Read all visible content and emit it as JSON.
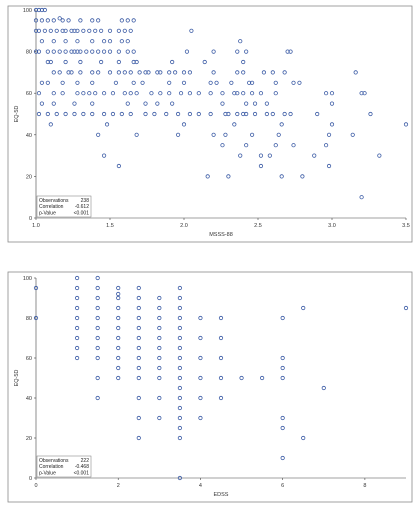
{
  "chart_data": [
    {
      "type": "scatter",
      "xlabel": "MSSS-88",
      "ylabel": "EQ-5D",
      "xlim": [
        1.0,
        3.5
      ],
      "ylim": [
        0,
        100
      ],
      "xticks": [
        "1.0",
        "1.5",
        "2.0",
        "2.5",
        "3.0",
        "3.5"
      ],
      "xtick_values": [
        1.0,
        1.5,
        2.0,
        2.5,
        3.0,
        3.5
      ],
      "yticks": [
        "0",
        "20",
        "40",
        "60",
        "80",
        "100"
      ],
      "ytick_values": [
        0,
        20,
        40,
        60,
        80,
        100
      ],
      "stats": [
        {
          "label": "Observations",
          "value": "238"
        },
        {
          "label": "Correlation",
          "value": "-0.612"
        },
        {
          "label": "p-Value",
          "value": "<0.001"
        }
      ],
      "points": [
        [
          1.0,
          100
        ],
        [
          1.02,
          100
        ],
        [
          1.04,
          100
        ],
        [
          1.06,
          100
        ],
        [
          1.0,
          95
        ],
        [
          1.04,
          95
        ],
        [
          1.08,
          95
        ],
        [
          1.12,
          95
        ],
        [
          1.16,
          96
        ],
        [
          1.18,
          95
        ],
        [
          1.22,
          95
        ],
        [
          1.3,
          95
        ],
        [
          1.38,
          95
        ],
        [
          1.42,
          95
        ],
        [
          1.58,
          95
        ],
        [
          1.62,
          95
        ],
        [
          1.66,
          95
        ],
        [
          1.0,
          90
        ],
        [
          1.02,
          90
        ],
        [
          1.06,
          90
        ],
        [
          1.1,
          90
        ],
        [
          1.14,
          90
        ],
        [
          1.18,
          90
        ],
        [
          1.2,
          90
        ],
        [
          1.24,
          90
        ],
        [
          1.26,
          90
        ],
        [
          1.28,
          90
        ],
        [
          1.32,
          90
        ],
        [
          1.36,
          90
        ],
        [
          1.4,
          90
        ],
        [
          1.44,
          90
        ],
        [
          1.5,
          90
        ],
        [
          1.56,
          90
        ],
        [
          1.6,
          90
        ],
        [
          1.64,
          90
        ],
        [
          2.05,
          90
        ],
        [
          1.04,
          85
        ],
        [
          1.12,
          85
        ],
        [
          1.2,
          85
        ],
        [
          1.28,
          85
        ],
        [
          1.38,
          85
        ],
        [
          1.46,
          85
        ],
        [
          1.5,
          85
        ],
        [
          1.58,
          85
        ],
        [
          1.62,
          85
        ],
        [
          2.38,
          85
        ],
        [
          1.0,
          80
        ],
        [
          1.02,
          80
        ],
        [
          1.08,
          80
        ],
        [
          1.12,
          80
        ],
        [
          1.16,
          80
        ],
        [
          1.2,
          80
        ],
        [
          1.24,
          80
        ],
        [
          1.26,
          80
        ],
        [
          1.28,
          80
        ],
        [
          1.3,
          80
        ],
        [
          1.34,
          80
        ],
        [
          1.38,
          80
        ],
        [
          1.42,
          80
        ],
        [
          1.46,
          80
        ],
        [
          1.5,
          80
        ],
        [
          1.56,
          80
        ],
        [
          1.62,
          80
        ],
        [
          1.66,
          80
        ],
        [
          2.02,
          80
        ],
        [
          2.2,
          80
        ],
        [
          2.36,
          80
        ],
        [
          2.42,
          80
        ],
        [
          2.7,
          80
        ],
        [
          2.72,
          80
        ],
        [
          1.08,
          75
        ],
        [
          1.1,
          75
        ],
        [
          1.2,
          75
        ],
        [
          1.3,
          75
        ],
        [
          1.44,
          75
        ],
        [
          1.56,
          75
        ],
        [
          1.66,
          75
        ],
        [
          1.68,
          75
        ],
        [
          1.92,
          75
        ],
        [
          2.14,
          75
        ],
        [
          2.4,
          75
        ],
        [
          1.12,
          70
        ],
        [
          1.16,
          70
        ],
        [
          1.22,
          70
        ],
        [
          1.24,
          70
        ],
        [
          1.3,
          70
        ],
        [
          1.38,
          70
        ],
        [
          1.42,
          70
        ],
        [
          1.5,
          70
        ],
        [
          1.56,
          70
        ],
        [
          1.6,
          70
        ],
        [
          1.64,
          70
        ],
        [
          1.7,
          70
        ],
        [
          1.74,
          70
        ],
        [
          1.76,
          70
        ],
        [
          1.82,
          70
        ],
        [
          1.84,
          70
        ],
        [
          1.9,
          70
        ],
        [
          1.94,
          70
        ],
        [
          2.0,
          70
        ],
        [
          2.04,
          70
        ],
        [
          2.2,
          70
        ],
        [
          2.36,
          70
        ],
        [
          2.4,
          70
        ],
        [
          2.54,
          70
        ],
        [
          2.6,
          70
        ],
        [
          2.68,
          70
        ],
        [
          3.16,
          70
        ],
        [
          1.04,
          65
        ],
        [
          1.08,
          65
        ],
        [
          1.18,
          65
        ],
        [
          1.28,
          65
        ],
        [
          1.38,
          65
        ],
        [
          1.54,
          65
        ],
        [
          1.66,
          65
        ],
        [
          1.72,
          65
        ],
        [
          1.9,
          65
        ],
        [
          2.0,
          65
        ],
        [
          2.18,
          65
        ],
        [
          2.22,
          65
        ],
        [
          2.32,
          65
        ],
        [
          2.44,
          65
        ],
        [
          2.46,
          65
        ],
        [
          2.62,
          65
        ],
        [
          2.74,
          65
        ],
        [
          2.78,
          65
        ],
        [
          1.02,
          60
        ],
        [
          1.12,
          60
        ],
        [
          1.18,
          60
        ],
        [
          1.28,
          60
        ],
        [
          1.32,
          60
        ],
        [
          1.36,
          60
        ],
        [
          1.4,
          60
        ],
        [
          1.46,
          60
        ],
        [
          1.52,
          60
        ],
        [
          1.6,
          60
        ],
        [
          1.64,
          60
        ],
        [
          1.68,
          60
        ],
        [
          1.78,
          60
        ],
        [
          1.84,
          60
        ],
        [
          1.9,
          60
        ],
        [
          1.98,
          60
        ],
        [
          2.04,
          60
        ],
        [
          2.1,
          60
        ],
        [
          2.18,
          60
        ],
        [
          2.26,
          60
        ],
        [
          2.34,
          60
        ],
        [
          2.36,
          60
        ],
        [
          2.4,
          60
        ],
        [
          2.46,
          60
        ],
        [
          2.52,
          60
        ],
        [
          2.62,
          60
        ],
        [
          2.96,
          60
        ],
        [
          3.0,
          60
        ],
        [
          3.2,
          60
        ],
        [
          3.22,
          60
        ],
        [
          1.04,
          55
        ],
        [
          1.12,
          55
        ],
        [
          1.26,
          55
        ],
        [
          1.38,
          55
        ],
        [
          1.62,
          55
        ],
        [
          1.74,
          55
        ],
        [
          1.82,
          55
        ],
        [
          1.92,
          55
        ],
        [
          2.26,
          55
        ],
        [
          2.42,
          55
        ],
        [
          2.48,
          55
        ],
        [
          2.56,
          55
        ],
        [
          3.0,
          55
        ],
        [
          1.02,
          50
        ],
        [
          1.08,
          50
        ],
        [
          1.14,
          50
        ],
        [
          1.2,
          50
        ],
        [
          1.26,
          50
        ],
        [
          1.32,
          50
        ],
        [
          1.38,
          50
        ],
        [
          1.46,
          50
        ],
        [
          1.52,
          50
        ],
        [
          1.58,
          50
        ],
        [
          1.64,
          50
        ],
        [
          1.74,
          50
        ],
        [
          1.8,
          50
        ],
        [
          1.88,
          50
        ],
        [
          1.96,
          50
        ],
        [
          2.04,
          50
        ],
        [
          2.1,
          50
        ],
        [
          2.18,
          50
        ],
        [
          2.28,
          50
        ],
        [
          2.3,
          50
        ],
        [
          2.36,
          50
        ],
        [
          2.4,
          50
        ],
        [
          2.42,
          50
        ],
        [
          2.48,
          50
        ],
        [
          2.56,
          50
        ],
        [
          2.6,
          50
        ],
        [
          2.68,
          50
        ],
        [
          2.72,
          50
        ],
        [
          2.9,
          50
        ],
        [
          3.26,
          50
        ],
        [
          1.1,
          45
        ],
        [
          1.48,
          45
        ],
        [
          2.0,
          45
        ],
        [
          2.34,
          45
        ],
        [
          2.66,
          45
        ],
        [
          3.0,
          45
        ],
        [
          3.5,
          45
        ],
        [
          1.42,
          40
        ],
        [
          1.68,
          40
        ],
        [
          1.96,
          40
        ],
        [
          2.2,
          40
        ],
        [
          2.28,
          40
        ],
        [
          2.46,
          40
        ],
        [
          2.64,
          40
        ],
        [
          2.98,
          40
        ],
        [
          3.14,
          40
        ],
        [
          2.26,
          35
        ],
        [
          2.42,
          35
        ],
        [
          2.62,
          35
        ],
        [
          2.74,
          35
        ],
        [
          2.96,
          35
        ],
        [
          1.46,
          30
        ],
        [
          2.38,
          30
        ],
        [
          2.52,
          30
        ],
        [
          2.58,
          30
        ],
        [
          2.88,
          30
        ],
        [
          3.32,
          30
        ],
        [
          1.56,
          25
        ],
        [
          2.52,
          25
        ],
        [
          2.98,
          25
        ],
        [
          2.16,
          20
        ],
        [
          2.3,
          20
        ],
        [
          2.66,
          20
        ],
        [
          2.8,
          20
        ],
        [
          3.2,
          10
        ]
      ]
    },
    {
      "type": "scatter",
      "xlabel": "EDSS",
      "ylabel": "EQ-5D",
      "xlim": [
        0,
        9
      ],
      "ylim": [
        0,
        100
      ],
      "xticks": [
        "0",
        "2",
        "4",
        "6",
        "8"
      ],
      "xtick_values": [
        0,
        2,
        4,
        6,
        8
      ],
      "yticks": [
        "0",
        "20",
        "40",
        "60",
        "80",
        "100"
      ],
      "ytick_values": [
        0,
        20,
        40,
        60,
        80,
        100
      ],
      "stats": [
        {
          "label": "Observations",
          "value": "222"
        },
        {
          "label": "Correlation",
          "value": "-0.468"
        },
        {
          "label": "p-Value",
          "value": "<0.001"
        }
      ],
      "points": [
        [
          0,
          95
        ],
        [
          0,
          80
        ],
        [
          1,
          100
        ],
        [
          1,
          95
        ],
        [
          1,
          90
        ],
        [
          1,
          85
        ],
        [
          1,
          80
        ],
        [
          1,
          75
        ],
        [
          1,
          70
        ],
        [
          1,
          65
        ],
        [
          1,
          60
        ],
        [
          1.5,
          100
        ],
        [
          1.5,
          95
        ],
        [
          1.5,
          90
        ],
        [
          1.5,
          85
        ],
        [
          1.5,
          80
        ],
        [
          1.5,
          75
        ],
        [
          1.5,
          70
        ],
        [
          1.5,
          65
        ],
        [
          1.5,
          60
        ],
        [
          1.5,
          50
        ],
        [
          1.5,
          40
        ],
        [
          2,
          95
        ],
        [
          2,
          92
        ],
        [
          2,
          90
        ],
        [
          2,
          85
        ],
        [
          2,
          80
        ],
        [
          2,
          75
        ],
        [
          2,
          70
        ],
        [
          2,
          65
        ],
        [
          2,
          60
        ],
        [
          2,
          55
        ],
        [
          2,
          50
        ],
        [
          2.5,
          95
        ],
        [
          2.5,
          90
        ],
        [
          2.5,
          85
        ],
        [
          2.5,
          80
        ],
        [
          2.5,
          75
        ],
        [
          2.5,
          70
        ],
        [
          2.5,
          65
        ],
        [
          2.5,
          60
        ],
        [
          2.5,
          55
        ],
        [
          2.5,
          50
        ],
        [
          2.5,
          40
        ],
        [
          2.5,
          30
        ],
        [
          2.5,
          20
        ],
        [
          3,
          90
        ],
        [
          3,
          85
        ],
        [
          3,
          80
        ],
        [
          3,
          75
        ],
        [
          3,
          70
        ],
        [
          3,
          65
        ],
        [
          3,
          60
        ],
        [
          3,
          55
        ],
        [
          3,
          50
        ],
        [
          3,
          40
        ],
        [
          3,
          30
        ],
        [
          3.5,
          95
        ],
        [
          3.5,
          90
        ],
        [
          3.5,
          85
        ],
        [
          3.5,
          80
        ],
        [
          3.5,
          75
        ],
        [
          3.5,
          70
        ],
        [
          3.5,
          65
        ],
        [
          3.5,
          60
        ],
        [
          3.5,
          55
        ],
        [
          3.5,
          50
        ],
        [
          3.5,
          45
        ],
        [
          3.5,
          40
        ],
        [
          3.5,
          35
        ],
        [
          3.5,
          30
        ],
        [
          3.5,
          25
        ],
        [
          3.5,
          20
        ],
        [
          3.5,
          0
        ],
        [
          4,
          80
        ],
        [
          4,
          70
        ],
        [
          4,
          60
        ],
        [
          4,
          50
        ],
        [
          4,
          40
        ],
        [
          4,
          30
        ],
        [
          4.5,
          80
        ],
        [
          4.5,
          70
        ],
        [
          4.5,
          60
        ],
        [
          4.5,
          50
        ],
        [
          4.5,
          40
        ],
        [
          5,
          50
        ],
        [
          5.5,
          50
        ],
        [
          6,
          80
        ],
        [
          6,
          60
        ],
        [
          6,
          55
        ],
        [
          6,
          50
        ],
        [
          6,
          30
        ],
        [
          6,
          25
        ],
        [
          6,
          10
        ],
        [
          6.5,
          85
        ],
        [
          6.5,
          20
        ],
        [
          7,
          45
        ],
        [
          9,
          85
        ]
      ]
    }
  ]
}
